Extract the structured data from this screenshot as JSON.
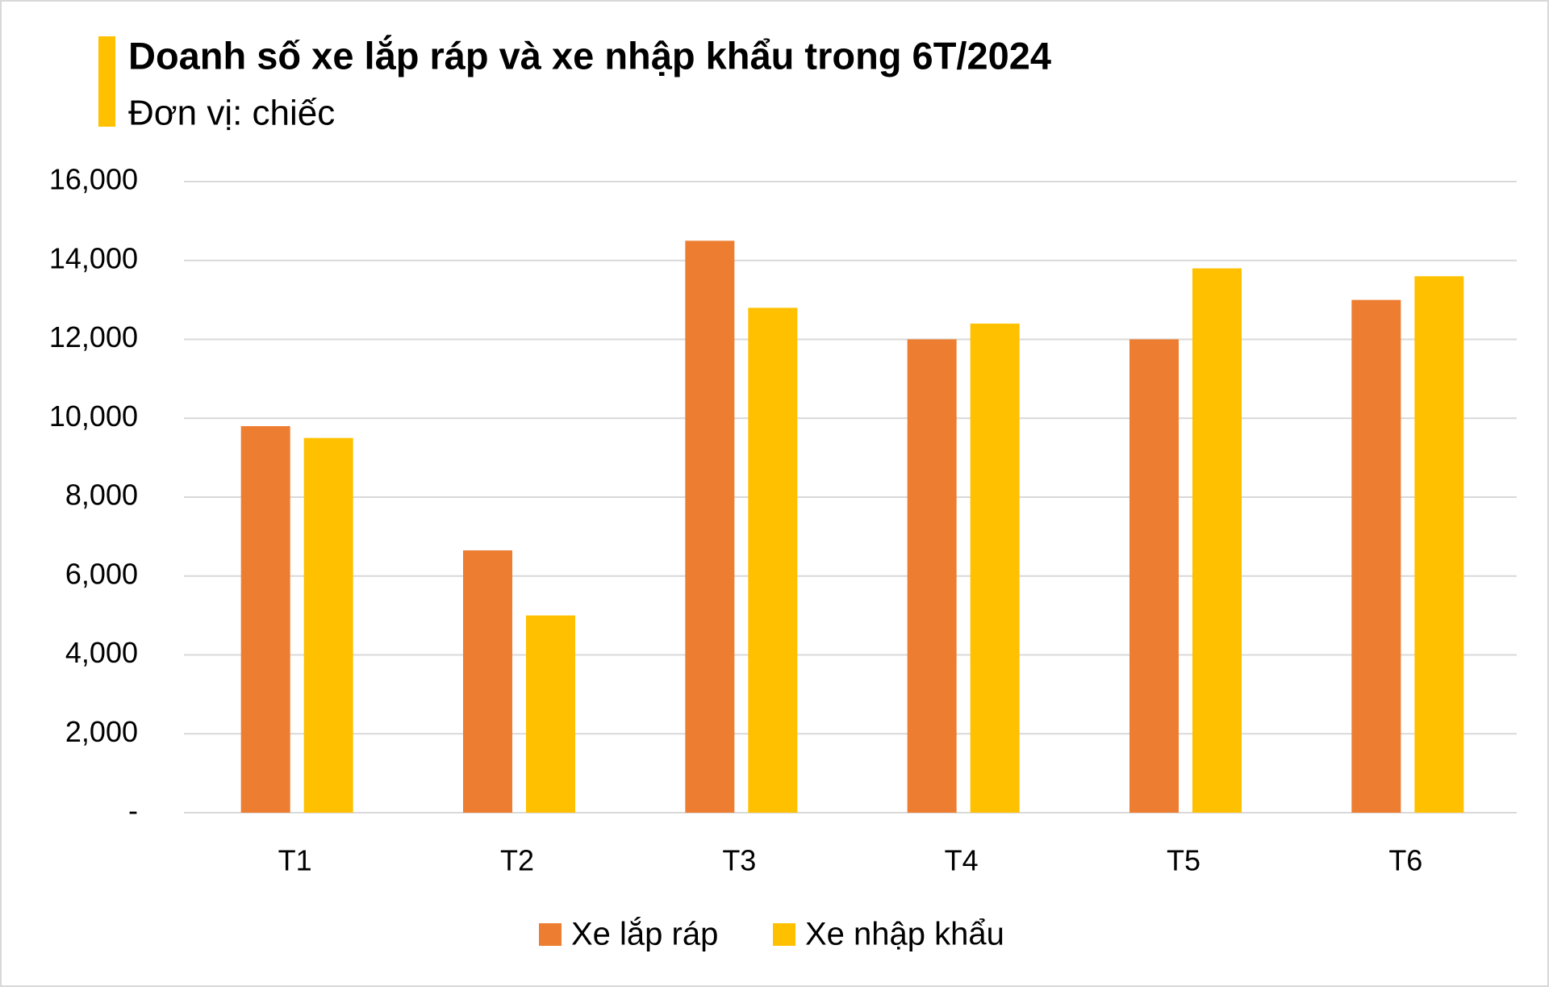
{
  "chart_data": {
    "type": "bar",
    "title": "Doanh số xe lắp ráp và xe nhập khẩu trong 6T/2024",
    "subtitle": "Đơn vị: chiếc",
    "categories": [
      "T1",
      "T2",
      "T3",
      "T4",
      "T5",
      "T6"
    ],
    "series": [
      {
        "name": "Xe lắp ráp",
        "color": "#ed7d31",
        "values": [
          9800,
          6650,
          14500,
          12000,
          12000,
          13000
        ]
      },
      {
        "name": "Xe nhập khẩu",
        "color": "#ffc000",
        "values": [
          9500,
          5000,
          12800,
          12400,
          13800,
          13600
        ]
      }
    ],
    "ylim": [
      0,
      16000
    ],
    "yticks": [
      {
        "value": 0,
        "label": "-"
      },
      {
        "value": 2000,
        "label": "2,000"
      },
      {
        "value": 4000,
        "label": "4,000"
      },
      {
        "value": 6000,
        "label": "6,000"
      },
      {
        "value": 8000,
        "label": "8,000"
      },
      {
        "value": 10000,
        "label": "10,000"
      },
      {
        "value": 12000,
        "label": "12,000"
      },
      {
        "value": 14000,
        "label": "14,000"
      },
      {
        "value": 16000,
        "label": "16,000"
      }
    ],
    "grid": true,
    "legend": "bottom"
  }
}
